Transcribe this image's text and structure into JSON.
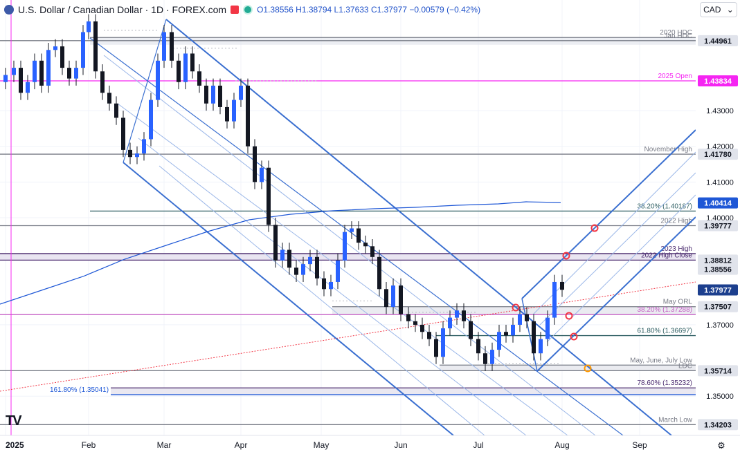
{
  "header": {
    "symbol": "U.S. Dollar / Canadian Dollar · 1D · FOREX.com",
    "ohlc": {
      "o": "O1.38556",
      "h": "H1.38794",
      "l": "L1.37633",
      "c": "C1.37977",
      "chg": "−0.00579 (−0.42%)"
    },
    "currency": "CAD",
    "currency_caret": "⌄"
  },
  "logo_text": "TV",
  "chart_data": {
    "type": "candlestick",
    "symbol": "USD/CAD",
    "interval": "1D",
    "y_range": [
      1.339,
      1.461
    ],
    "x_range_months": [
      "2025",
      "Feb",
      "Mar",
      "Apr",
      "May",
      "Jun",
      "Jul",
      "Aug",
      "Sep"
    ],
    "price_ticks": [
      "1.43000",
      "1.42000",
      "1.41000",
      "1.40000",
      "1.37000",
      "1.35000"
    ],
    "price_labels": [
      {
        "text": "1.44961",
        "value": 1.44961,
        "bg": "#e0e3eb",
        "fg": "#131722"
      },
      {
        "text": "1.43834",
        "value": 1.43834,
        "bg": "#f525f2",
        "fg": "#ffffff"
      },
      {
        "text": "1.41780",
        "value": 1.4178,
        "bg": "#e0e3eb",
        "fg": "#131722"
      },
      {
        "text": "1.40414",
        "value": 1.40414,
        "bg": "#1e57d6",
        "fg": "#ffffff"
      },
      {
        "text": "1.39777",
        "value": 1.39777,
        "bg": "#e0e3eb",
        "fg": "#131722"
      },
      {
        "text": "1.38812",
        "value": 1.38812,
        "bg": "#e0e3eb",
        "fg": "#131722"
      },
      {
        "text": "1.38556",
        "value": 1.38556,
        "bg": "#e0e3eb",
        "fg": "#131722"
      },
      {
        "text": "1.37977",
        "value": 1.37977,
        "bg": "#1c3f8e",
        "fg": "#ffffff"
      },
      {
        "text": "1.37507",
        "value": 1.37507,
        "bg": "#e0e3eb",
        "fg": "#131722"
      },
      {
        "text": "1.35714",
        "value": 1.35714,
        "bg": "#e0e3eb",
        "fg": "#131722"
      },
      {
        "text": "1.34203",
        "value": 1.34203,
        "bg": "#e0e3eb",
        "fg": "#131722"
      }
    ],
    "levels": [
      {
        "label": "2020 HDC",
        "value": 1.4505,
        "color": "#787b86"
      },
      {
        "label": "Jan HDC",
        "value": 1.44961,
        "color": "#787b86"
      },
      {
        "label": "2025 Open",
        "value": 1.43834,
        "color": "#f525f2"
      },
      {
        "label": "November High",
        "value": 1.4178,
        "color": "#787b86"
      },
      {
        "label": "38.20% (1.40187)",
        "value": 1.40187,
        "color": "#2f5f63"
      },
      {
        "label": "2022 High",
        "value": 1.39777,
        "color": "#787b86"
      },
      {
        "label": "2023 High",
        "value": 1.38994,
        "color": "#4a2a6e"
      },
      {
        "label": "2022 High Close",
        "value": 1.38812,
        "color": "#4a2a6e"
      },
      {
        "label": "May ORL",
        "value": 1.37507,
        "color": "#787b86"
      },
      {
        "label": "38.20% (1.37288)",
        "value": 1.37288,
        "color": "#c45cc4"
      },
      {
        "label": "61.80% (1.36697)",
        "value": 1.36697,
        "color": "#2f5f63"
      },
      {
        "label": "May, June, July Low",
        "value": 1.3587,
        "color": "#787b86"
      },
      {
        "label": "LDC",
        "value": 1.35714,
        "color": "#787b86"
      },
      {
        "label": "78.60% (1.35232)",
        "value": 1.35232,
        "color": "#4a2a6e"
      },
      {
        "label": "161.80% (1.35041)",
        "value": 1.35041,
        "color": "#1e57d6"
      },
      {
        "label": "March Low",
        "value": 1.34203,
        "color": "#787b86"
      }
    ],
    "last_close": 1.37977
  }
}
